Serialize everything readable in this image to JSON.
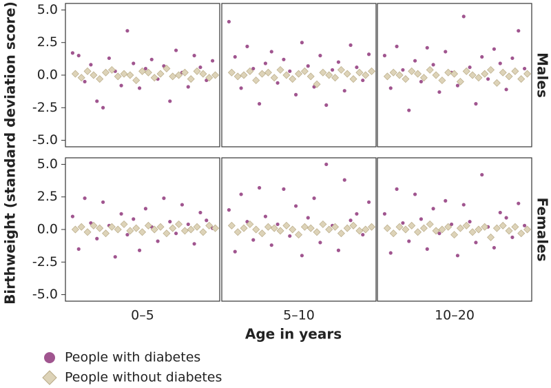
{
  "chart_data": {
    "type": "scatter",
    "x_label": "Age in years",
    "y_label": "Birthweight (standard deviation score)",
    "columns": [
      "0–5",
      "5–10",
      "10–20"
    ],
    "rows": [
      "Males",
      "Females"
    ],
    "ylim": [
      -5.5,
      5.5
    ],
    "yticks": [
      {
        "value": 5,
        "label": "5.0"
      },
      {
        "value": 2.5,
        "label": "2.5"
      },
      {
        "value": 0,
        "label": "0.0"
      },
      {
        "value": -2.5,
        "label": "-2.5"
      },
      {
        "value": -5,
        "label": "-5.0"
      }
    ],
    "series": [
      {
        "name": "People with diabetes",
        "color": "#a0558f",
        "marker": "circle",
        "values": [
          [
            1.7,
            1.5,
            -0.5,
            0.8,
            -2.0,
            -2.5,
            1.3,
            0.3,
            -0.8,
            3.4,
            0.9,
            -1.0,
            0.5,
            1.2,
            -0.3,
            0.7,
            -2.0,
            1.9,
            0.2,
            -0.9,
            1.5,
            0.6,
            -0.4,
            1.1
          ],
          [
            4.1,
            1.4,
            -1.0,
            2.2,
            0.5,
            -2.2,
            0.9,
            1.8,
            -0.6,
            1.2,
            0.3,
            -1.5,
            2.5,
            0.7,
            -0.9,
            1.5,
            -2.3,
            0.4,
            1.0,
            -1.2,
            2.3,
            0.6,
            -0.4,
            1.6
          ],
          [
            1.5,
            -1.0,
            2.2,
            0.4,
            -2.7,
            1.1,
            -0.5,
            2.1,
            0.8,
            -1.3,
            1.8,
            0.2,
            -0.8,
            4.5,
            0.6,
            -2.2,
            1.4,
            -0.3,
            2.0,
            0.9,
            -1.1,
            1.3,
            3.4,
            0.5
          ],
          [
            1.0,
            -1.5,
            2.4,
            0.5,
            -0.7,
            2.1,
            0.3,
            -2.1,
            1.2,
            -0.4,
            0.8,
            -1.6,
            1.6,
            0.2,
            -0.9,
            2.4,
            0.6,
            -0.3,
            1.9,
            0.4,
            -1.1,
            1.3,
            0.7,
            0.1
          ],
          [
            1.5,
            -1.7,
            2.7,
            0.6,
            -0.8,
            3.2,
            1.0,
            -1.2,
            0.4,
            3.1,
            -0.5,
            1.8,
            -2.0,
            0.9,
            2.4,
            -1.0,
            5.0,
            0.3,
            -1.6,
            3.8,
            0.7,
            1.2,
            -0.4,
            2.1
          ],
          [
            1.2,
            -1.8,
            3.1,
            0.5,
            -0.9,
            2.7,
            0.8,
            -1.5,
            1.6,
            -0.3,
            2.2,
            0.4,
            -2.0,
            1.9,
            0.6,
            -1.0,
            4.2,
            0.2,
            -1.4,
            1.3,
            0.9,
            -0.6,
            2.0,
            0.3
          ]
        ]
      },
      {
        "name": "People without diabetes",
        "color": "#ddd3b8",
        "marker": "diamond",
        "values": [
          [
            0.1,
            -0.2,
            0.3,
            0.0,
            -0.3,
            0.2,
            0.4,
            -0.1,
            0.1,
            0.0,
            -0.4,
            0.3,
            0.2,
            -0.2,
            0.1,
            0.5,
            -0.1,
            0.0,
            0.2,
            -0.3,
            0.3,
            0.1,
            -0.2,
            0.0
          ],
          [
            0.2,
            -0.1,
            0.0,
            0.3,
            -0.4,
            0.1,
            0.2,
            -0.2,
            0.4,
            0.0,
            -0.3,
            0.1,
            0.3,
            -0.1,
            -0.7,
            0.2,
            0.0,
            -0.2,
            0.4,
            0.1,
            -0.3,
            0.2,
            0.0,
            0.3
          ],
          [
            -0.1,
            0.2,
            0.0,
            -0.3,
            0.3,
            0.1,
            -0.2,
            0.4,
            0.0,
            -0.4,
            0.2,
            0.1,
            -0.5,
            0.3,
            0.0,
            -0.2,
            0.1,
            0.4,
            -0.6,
            0.2,
            -0.1,
            0.3,
            -0.3,
            0.1
          ],
          [
            0.0,
            0.2,
            -0.2,
            0.3,
            0.1,
            -0.3,
            0.2,
            0.0,
            0.4,
            -0.1,
            0.1,
            -0.2,
            0.3,
            0.0,
            0.2,
            -0.3,
            0.1,
            0.4,
            -0.1,
            0.0,
            0.2,
            -0.2,
            0.3,
            0.1
          ],
          [
            0.3,
            -0.2,
            0.1,
            0.4,
            0.0,
            -0.3,
            0.2,
            0.1,
            -0.1,
            0.3,
            0.0,
            -0.4,
            0.2,
            0.1,
            -0.2,
            0.4,
            0.0,
            0.2,
            -0.3,
            0.1,
            0.3,
            -0.1,
            0.0,
            0.2
          ],
          [
            0.1,
            -0.3,
            0.2,
            0.0,
            0.3,
            -0.2,
            0.1,
            0.4,
            -0.1,
            0.0,
            0.2,
            -0.4,
            0.1,
            0.3,
            -0.2,
            0.0,
            0.2,
            -0.6,
            0.1,
            0.3,
            -0.1,
            0.2,
            -0.3,
            0.0
          ]
        ]
      }
    ]
  }
}
